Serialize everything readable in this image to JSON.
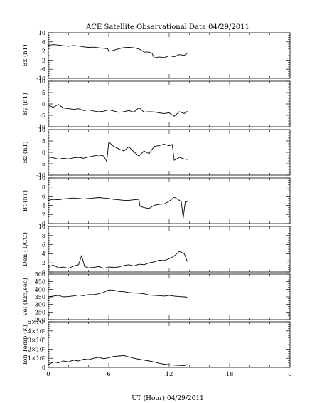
{
  "chart_data": {
    "type": "line",
    "title": "ACE Satellite Observational Data   04/29/2011",
    "xlabel": "UT (Hour)   04/29/2011",
    "xlim": [
      0,
      24
    ],
    "xticks": [
      "0",
      "6",
      "12",
      "18",
      "0"
    ],
    "grid": false,
    "line_color": "#000000",
    "panels": [
      {
        "name": "Bx",
        "ylabel": "Bx (nT)",
        "ylim": [
          -10,
          10
        ],
        "yticks": [
          "10",
          "6",
          "2",
          "-2",
          "-6",
          "-10"
        ],
        "tick_values": [
          10,
          6,
          2,
          -2,
          -6,
          -10
        ],
        "x": [
          0,
          0.5,
          1,
          1.5,
          2,
          2.5,
          3,
          3.5,
          4,
          4.5,
          5,
          5.5,
          5.9,
          6.0,
          6.5,
          7,
          7.5,
          8,
          8.5,
          9,
          9.5,
          10,
          10.3,
          10.5,
          11,
          11.5,
          12,
          12.5,
          13,
          13.5,
          13.8
        ],
        "y": [
          4.5,
          4.8,
          4.6,
          4.3,
          4.1,
          4.4,
          4.2,
          3.8,
          3.6,
          3.7,
          3.4,
          3.2,
          3.0,
          1.8,
          2.3,
          3.0,
          3.5,
          3.6,
          3.4,
          2.9,
          1.6,
          1.5,
          1.0,
          -1.0,
          -0.6,
          -0.9,
          -0.1,
          -0.5,
          0.4,
          0.1,
          1.0
        ]
      },
      {
        "name": "By",
        "ylabel": "By (nT)",
        "ylim": [
          -10,
          10
        ],
        "yticks": [
          "10",
          "5",
          "0",
          "-5",
          "-10"
        ],
        "tick_values": [
          10,
          5,
          0,
          -5,
          -10
        ],
        "x": [
          0,
          0.5,
          1,
          1.5,
          2,
          2.5,
          3,
          3.5,
          4,
          4.5,
          5,
          5.5,
          6,
          6.5,
          7,
          7.5,
          8,
          8.5,
          9,
          9.5,
          10,
          10.5,
          11,
          11.5,
          12,
          12.5,
          13,
          13.5,
          13.8
        ],
        "y": [
          -0.5,
          -1.5,
          -0.2,
          -1.8,
          -2.0,
          -2.4,
          -2.1,
          -2.9,
          -2.6,
          -3.1,
          -3.4,
          -3.2,
          -2.6,
          -3.1,
          -3.7,
          -3.4,
          -2.9,
          -3.6,
          -1.6,
          -3.6,
          -3.4,
          -3.5,
          -3.9,
          -4.2,
          -3.9,
          -5.4,
          -3.4,
          -4.2,
          -3.2
        ]
      },
      {
        "name": "Bz",
        "ylabel": "Bz (nT)",
        "ylim": [
          -10,
          10
        ],
        "yticks": [
          "10",
          "5",
          "0",
          "-5",
          "-10"
        ],
        "tick_values": [
          10,
          5,
          0,
          -5,
          -10
        ],
        "x": [
          0,
          0.5,
          1,
          1.5,
          2,
          2.5,
          3,
          3.5,
          4,
          4.5,
          5,
          5.5,
          5.8,
          6,
          6.5,
          7,
          7.5,
          8,
          8.5,
          9,
          9.5,
          10,
          10.5,
          11,
          11.5,
          12,
          12.3,
          12.5,
          13,
          13.5,
          13.8
        ],
        "y": [
          -2.0,
          -2.4,
          -3.0,
          -2.6,
          -2.9,
          -2.4,
          -2.2,
          -2.6,
          -2.0,
          -1.6,
          -1.2,
          -1.6,
          -4.0,
          4.5,
          2.6,
          1.5,
          0.6,
          2.5,
          0.2,
          -1.6,
          0.6,
          -0.6,
          2.6,
          3.0,
          3.6,
          2.9,
          3.5,
          -3.5,
          -2.2,
          -2.9,
          -3.2
        ]
      },
      {
        "name": "Bt",
        "ylabel": "Bt (nT)",
        "ylim": [
          0,
          10
        ],
        "yticks": [
          "10",
          "8",
          "6",
          "4",
          "2",
          "0"
        ],
        "tick_values": [
          10,
          8,
          6,
          4,
          2,
          0
        ],
        "x": [
          0,
          0.5,
          1,
          1.5,
          2,
          2.5,
          3,
          3.5,
          4,
          4.5,
          5,
          5.5,
          6,
          6.5,
          7,
          7.5,
          8,
          8.5,
          9,
          9.1,
          9.5,
          10,
          10.5,
          11,
          11.5,
          12,
          12.5,
          13,
          13.2,
          13.4,
          13.6,
          13.8
        ],
        "y": [
          5.1,
          5.3,
          5.2,
          5.4,
          5.5,
          5.6,
          5.5,
          5.4,
          5.5,
          5.6,
          5.7,
          5.6,
          5.5,
          5.3,
          5.2,
          5.1,
          5.1,
          5.2,
          5.3,
          3.8,
          3.5,
          3.3,
          4.0,
          4.2,
          4.3,
          4.9,
          5.8,
          5.1,
          4.8,
          1.2,
          4.9,
          4.7
        ]
      },
      {
        "name": "Den",
        "ylabel": "Den (1/CC)",
        "ylim": [
          0,
          10
        ],
        "yticks": [
          "10",
          "8",
          "6",
          "4",
          "2",
          "0"
        ],
        "tick_values": [
          10,
          8,
          6,
          4,
          2,
          0
        ],
        "x": [
          0,
          0.5,
          1,
          1.5,
          2,
          2.5,
          3,
          3.3,
          3.6,
          4,
          4.5,
          5,
          5.5,
          6,
          6.5,
          7,
          7.5,
          8,
          8.5,
          9,
          9.5,
          10,
          10.5,
          11,
          11.5,
          12,
          12.5,
          13,
          13.5,
          13.8
        ],
        "y": [
          1.2,
          1.5,
          0.9,
          1.1,
          0.8,
          1.3,
          1.6,
          3.6,
          1.2,
          0.9,
          1.0,
          1.2,
          0.8,
          1.1,
          1.0,
          1.1,
          1.4,
          1.6,
          1.3,
          1.7,
          1.6,
          2.0,
          2.2,
          2.6,
          2.5,
          2.9,
          3.5,
          4.5,
          4.0,
          2.3
        ]
      },
      {
        "name": "Vel",
        "ylabel": "Vel (Km/sec)",
        "ylim": [
          200,
          500
        ],
        "yticks": [
          "500",
          "450",
          "400",
          "350",
          "300",
          "250",
          "200"
        ],
        "tick_values": [
          500,
          450,
          400,
          350,
          300,
          250,
          200
        ],
        "x": [
          0,
          0.5,
          1,
          1.5,
          2,
          2.5,
          3,
          3.5,
          4,
          4.5,
          5,
          5.5,
          6,
          6.5,
          7,
          7.5,
          8,
          8.5,
          9,
          9.5,
          10,
          10.5,
          11,
          11.5,
          12,
          12.5,
          13,
          13.5,
          13.8
        ],
        "y": [
          350,
          355,
          360,
          350,
          352,
          356,
          362,
          358,
          365,
          364,
          370,
          380,
          396,
          395,
          386,
          384,
          378,
          376,
          374,
          370,
          362,
          360,
          358,
          355,
          360,
          355,
          352,
          350,
          348
        ]
      },
      {
        "name": "Ion Temp",
        "ylabel": "Ion Temp (K)",
        "ylim": [
          0,
          500000
        ],
        "yticks": [
          "5×10⁵",
          "4×10⁵",
          "3×10⁵",
          "2×10⁵",
          "1×10⁵",
          "0"
        ],
        "tick_values": [
          500000,
          400000,
          300000,
          200000,
          100000,
          0
        ],
        "x": [
          0,
          0.5,
          1,
          1.5,
          2,
          2.5,
          3,
          3.5,
          4,
          4.5,
          5,
          5.5,
          6,
          6.5,
          7,
          7.5,
          8,
          8.5,
          9,
          9.5,
          10,
          10.5,
          11,
          11.5,
          12,
          12.5,
          13,
          13.5,
          13.8
        ],
        "y": [
          30000,
          60000,
          50000,
          70000,
          60000,
          80000,
          70000,
          90000,
          85000,
          100000,
          110000,
          95000,
          105000,
          120000,
          125000,
          130000,
          115000,
          100000,
          90000,
          80000,
          70000,
          60000,
          45000,
          35000,
          30000,
          25000,
          22000,
          20000,
          32000
        ]
      }
    ]
  }
}
